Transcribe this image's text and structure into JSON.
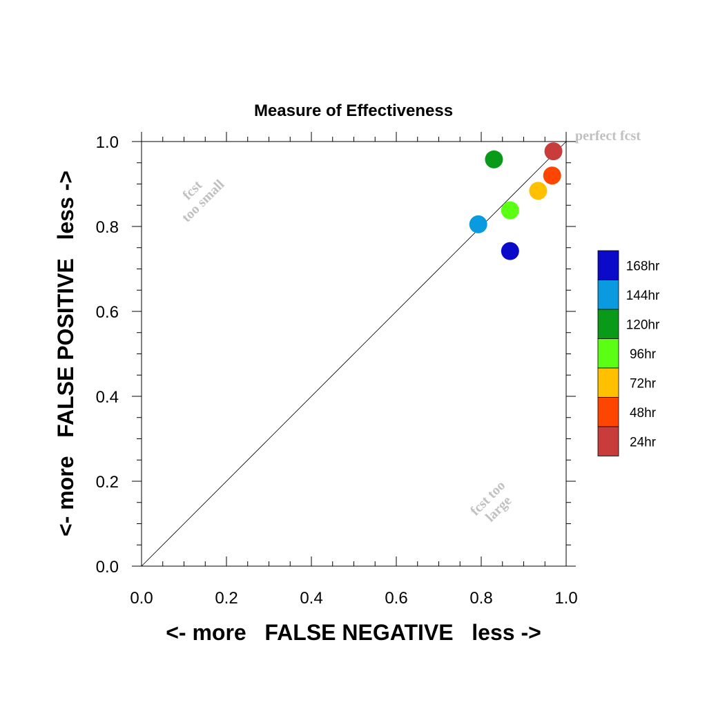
{
  "chart_data": {
    "type": "scatter",
    "title": "Measure of Effectiveness",
    "xlabel": "<- more   FALSE NEGATIVE   less ->",
    "ylabel": "<- more   FALSE POSITIVE   less ->",
    "xlim": [
      0,
      1
    ],
    "ylim": [
      0,
      1
    ],
    "x_ticks": [
      "0.0",
      "0.2",
      "0.4",
      "0.6",
      "0.8",
      "1.0"
    ],
    "y_ticks": [
      "0.0",
      "0.2",
      "0.4",
      "0.6",
      "0.8",
      "1.0"
    ],
    "grid": false,
    "diagonal_line": true,
    "legend_placement": "right",
    "annotations": {
      "perfect": "perfect fcst",
      "too_small_line1": "fcst",
      "too_small_line2": "too small",
      "too_large_line1": "fcst too",
      "too_large_line2": "large"
    },
    "series": [
      {
        "name": "168hr",
        "color": "#0a0ac8",
        "x": 0.868,
        "y": 0.742
      },
      {
        "name": "144hr",
        "color": "#0a9ae0",
        "x": 0.793,
        "y": 0.805
      },
      {
        "name": "120hr",
        "color": "#0a9a1a",
        "x": 0.83,
        "y": 0.958
      },
      {
        "name": "96hr",
        "color": "#5aff14",
        "x": 0.868,
        "y": 0.838
      },
      {
        "name": "72hr",
        "color": "#ffc000",
        "x": 0.934,
        "y": 0.884
      },
      {
        "name": "48hr",
        "color": "#ff4600",
        "x": 0.967,
        "y": 0.92
      },
      {
        "name": "24hr",
        "color": "#c83c3c",
        "x": 0.97,
        "y": 0.977
      }
    ]
  }
}
